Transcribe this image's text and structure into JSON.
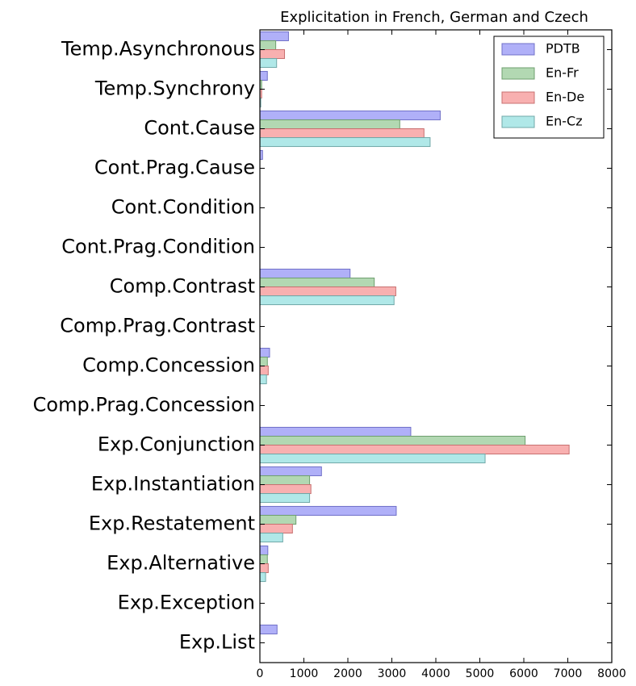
{
  "chart_data": {
    "type": "bar",
    "orientation": "horizontal",
    "title": "Explicitation in French, German and Czech",
    "xlabel": "",
    "ylabel": "",
    "xlim": [
      0,
      8000
    ],
    "xticks": [
      0,
      1000,
      2000,
      3000,
      4000,
      5000,
      6000,
      7000,
      8000
    ],
    "grid": false,
    "legend_position": "top-right",
    "categories": [
      "Temp.Asynchronous",
      "Temp.Synchrony",
      "Cont.Cause",
      "Cont.Prag.Cause",
      "Cont.Condition",
      "Cont.Prag.Condition",
      "Comp.Contrast",
      "Comp.Prag.Contrast",
      "Comp.Concession",
      "Comp.Prag.Concession",
      "Exp.Conjunction",
      "Exp.Instantiation",
      "Exp.Restatement",
      "Exp.Alternative",
      "Exp.Exception",
      "Exp.List"
    ],
    "series": [
      {
        "name": "PDTB",
        "color": "#b0b0f8",
        "edge": "#7070c8",
        "values": [
          650,
          170,
          4100,
          60,
          0,
          0,
          2050,
          0,
          220,
          0,
          3430,
          1400,
          3100,
          180,
          0,
          390
        ]
      },
      {
        "name": "En-Fr",
        "color": "#b2d8b2",
        "edge": "#6f9f6f",
        "values": [
          360,
          40,
          3180,
          0,
          0,
          0,
          2600,
          0,
          170,
          0,
          6030,
          1130,
          820,
          170,
          0,
          0
        ]
      },
      {
        "name": "En-De",
        "color": "#f8b0b0",
        "edge": "#c87070",
        "values": [
          560,
          40,
          3730,
          0,
          0,
          0,
          3090,
          0,
          190,
          0,
          7030,
          1160,
          740,
          190,
          0,
          0
        ]
      },
      {
        "name": "En-Cz",
        "color": "#b0e8e8",
        "edge": "#70a8a8",
        "values": [
          380,
          20,
          3870,
          0,
          0,
          0,
          3050,
          0,
          150,
          0,
          5120,
          1130,
          520,
          130,
          0,
          0
        ]
      }
    ]
  }
}
